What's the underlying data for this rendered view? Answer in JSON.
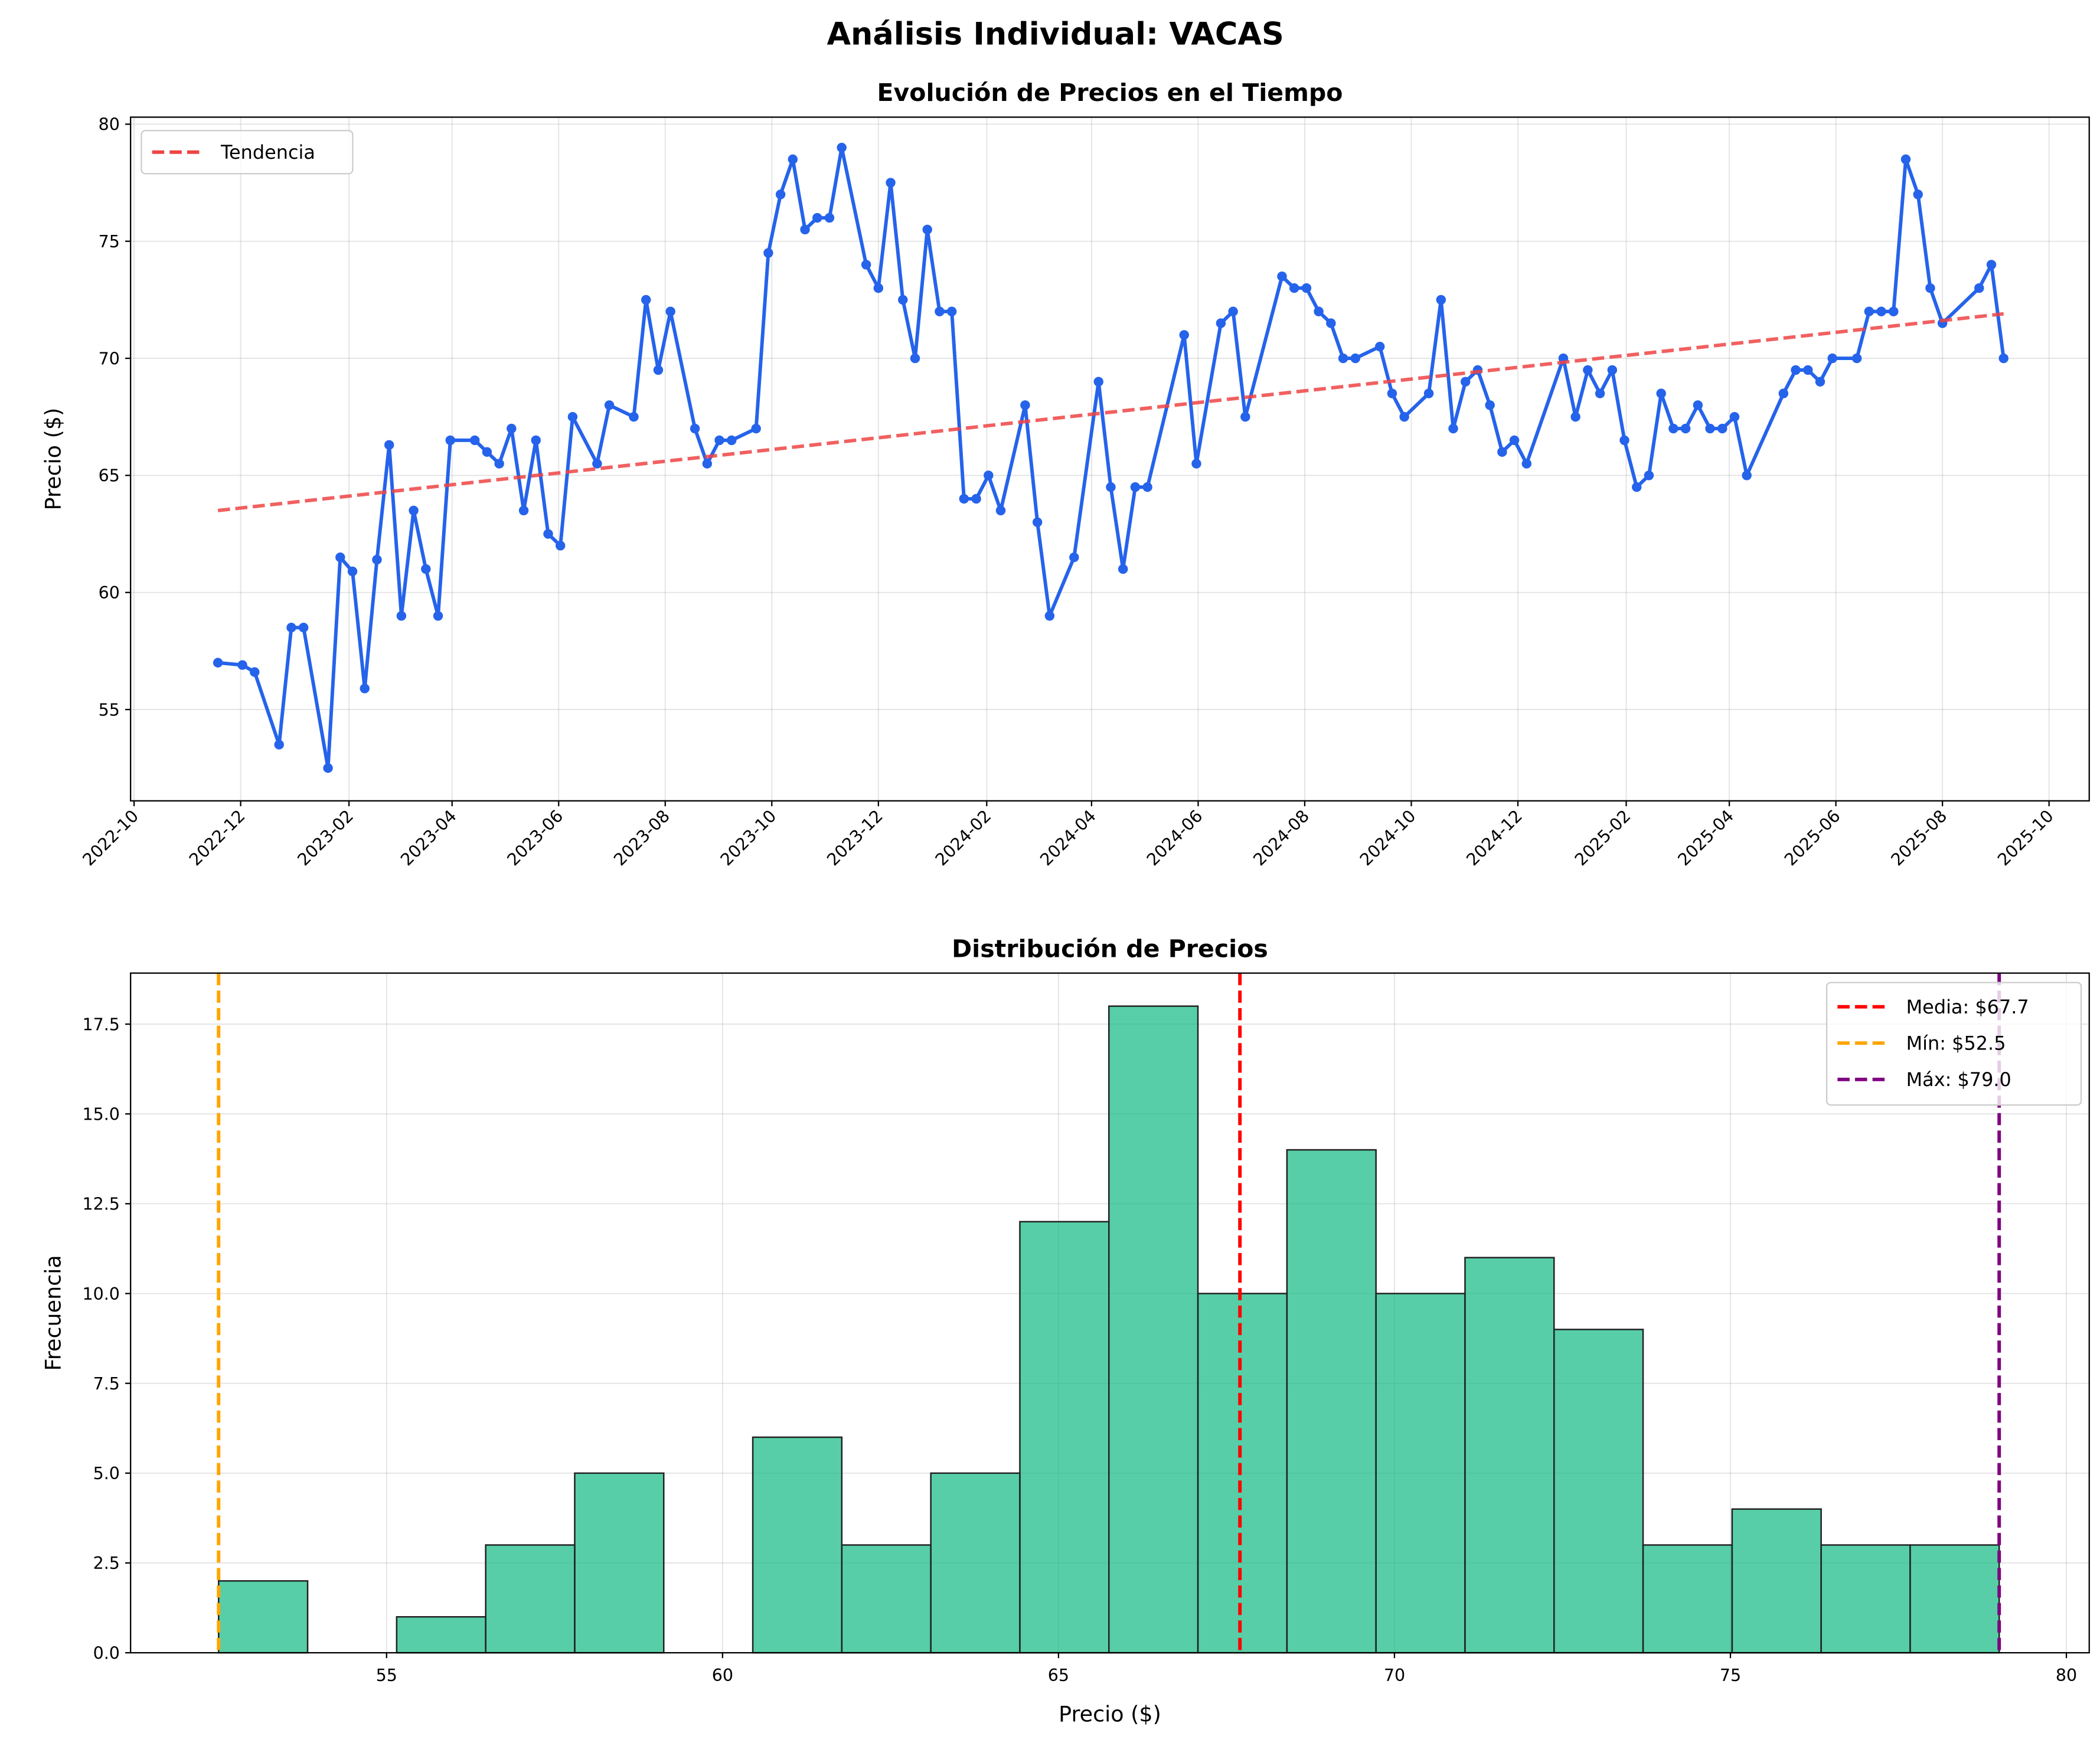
{
  "title": "Análisis Individual: VACAS",
  "chart_data": [
    {
      "type": "line",
      "title": "Evolución de Precios en el Tiempo",
      "y_label": "Precio ($)",
      "xlim": [
        "2022-09-29",
        "2025-10-24"
      ],
      "ylim": [
        51.1,
        80.3
      ],
      "xticks": [
        "2022-10",
        "2022-12",
        "2023-02",
        "2023-04",
        "2023-06",
        "2023-08",
        "2023-10",
        "2023-12",
        "2024-02",
        "2024-04",
        "2024-06",
        "2024-08",
        "2024-10",
        "2024-12",
        "2025-02",
        "2025-04",
        "2025-06",
        "2025-08",
        "2025-10"
      ],
      "yticks": [
        55,
        60,
        65,
        70,
        75,
        80
      ],
      "grid": true,
      "legend": "upper left",
      "series": [
        {
          "color": "#2563eb",
          "marker": true,
          "x": [
            "2022-11-18",
            "2022-12-02",
            "2022-12-09",
            "2022-12-23",
            "2022-12-30",
            "2023-01-06",
            "2023-01-20",
            "2023-01-27",
            "2023-02-03",
            "2023-02-10",
            "2023-02-17",
            "2023-02-24",
            "2023-03-03",
            "2023-03-10",
            "2023-03-17",
            "2023-03-24",
            "2023-03-31",
            "2023-04-14",
            "2023-04-21",
            "2023-04-28",
            "2023-05-05",
            "2023-05-12",
            "2023-05-19",
            "2023-05-26",
            "2023-06-02",
            "2023-06-09",
            "2023-06-23",
            "2023-06-30",
            "2023-07-14",
            "2023-07-21",
            "2023-07-28",
            "2023-08-04",
            "2023-08-18",
            "2023-08-25",
            "2023-09-01",
            "2023-09-08",
            "2023-09-22",
            "2023-09-29",
            "2023-10-06",
            "2023-10-13",
            "2023-10-20",
            "2023-10-27",
            "2023-11-03",
            "2023-11-10",
            "2023-11-24",
            "2023-12-01",
            "2023-12-08",
            "2023-12-15",
            "2023-12-22",
            "2023-12-29",
            "2024-01-05",
            "2024-01-12",
            "2024-01-19",
            "2024-01-26",
            "2024-02-02",
            "2024-02-09",
            "2024-02-23",
            "2024-03-01",
            "2024-03-08",
            "2024-03-22",
            "2024-04-05",
            "2024-04-12",
            "2024-04-19",
            "2024-04-26",
            "2024-05-03",
            "2024-05-24",
            "2024-05-31",
            "2024-06-14",
            "2024-06-21",
            "2024-06-28",
            "2024-07-19",
            "2024-07-26",
            "2024-08-02",
            "2024-08-09",
            "2024-08-16",
            "2024-08-23",
            "2024-08-30",
            "2024-09-13",
            "2024-09-20",
            "2024-09-27",
            "2024-10-11",
            "2024-10-18",
            "2024-10-25",
            "2024-11-01",
            "2024-11-08",
            "2024-11-15",
            "2024-11-22",
            "2024-11-29",
            "2024-12-06",
            "2024-12-27",
            "2025-01-03",
            "2025-01-10",
            "2025-01-17",
            "2025-01-24",
            "2025-01-31",
            "2025-02-07",
            "2025-02-14",
            "2025-02-21",
            "2025-02-28",
            "2025-03-07",
            "2025-03-14",
            "2025-03-21",
            "2025-03-28",
            "2025-04-04",
            "2025-04-11",
            "2025-05-02",
            "2025-05-09",
            "2025-05-16",
            "2025-05-23",
            "2025-05-30",
            "2025-06-13",
            "2025-06-20",
            "2025-06-27",
            "2025-07-04",
            "2025-07-11",
            "2025-07-18",
            "2025-07-25",
            "2025-08-01",
            "2025-08-22",
            "2025-08-29",
            "2025-09-05"
          ],
          "values": [
            57.0,
            56.9,
            56.6,
            53.5,
            58.5,
            58.5,
            52.5,
            61.5,
            60.9,
            55.9,
            61.4,
            66.3,
            59.0,
            63.5,
            61.0,
            59.0,
            66.5,
            66.5,
            66.0,
            65.5,
            67.0,
            63.5,
            66.5,
            62.5,
            62.0,
            67.5,
            65.5,
            68.0,
            67.5,
            72.5,
            69.5,
            72.0,
            67.0,
            65.5,
            66.5,
            66.5,
            67.0,
            74.5,
            77.0,
            78.5,
            75.5,
            76.0,
            76.0,
            79.0,
            74.0,
            73.0,
            77.5,
            72.5,
            70.0,
            75.5,
            72.0,
            72.0,
            64.0,
            64.0,
            65.0,
            63.5,
            68.0,
            63.0,
            59.0,
            61.5,
            69.0,
            64.5,
            61.0,
            64.5,
            64.5,
            71.0,
            65.5,
            71.5,
            72.0,
            67.5,
            73.5,
            73.0,
            73.0,
            72.0,
            71.5,
            70.0,
            70.0,
            70.5,
            68.5,
            67.5,
            68.5,
            72.5,
            67.0,
            69.0,
            69.5,
            68.0,
            66.0,
            66.5,
            65.5,
            70.0,
            67.5,
            69.5,
            68.5,
            69.5,
            66.5,
            64.5,
            65.0,
            68.5,
            67.0,
            67.0,
            68.0,
            67.0,
            67.0,
            67.5,
            65.0,
            68.5,
            69.5,
            69.5,
            69.0,
            70.0,
            70.0,
            72.0,
            72.0,
            72.0,
            78.5,
            77.0,
            73.0,
            71.5,
            73.0,
            74.0,
            70.0
          ]
        },
        {
          "name": "Tendencia",
          "color": "#ef4444",
          "linestyle": "dashed",
          "x": [
            "2022-11-18",
            "2025-09-05"
          ],
          "values": [
            63.5,
            71.9
          ]
        }
      ]
    },
    {
      "type": "histogram",
      "title": "Distribución de Precios",
      "x_label": "Precio ($)",
      "y_label": "Frecuencia",
      "xlim": [
        51.19,
        80.34
      ],
      "ylim": [
        0,
        18.92
      ],
      "xticks": [
        55,
        60,
        65,
        70,
        75,
        80
      ],
      "yticks": [
        {
          "value": 0,
          "label": "0.0"
        },
        2.5,
        {
          "value": 5,
          "label": "5.0"
        },
        7.5,
        {
          "value": 10,
          "label": "10.0"
        },
        12.5,
        {
          "value": 15,
          "label": "15.0"
        },
        17.5
      ],
      "grid": true,
      "legend": "upper right",
      "color": "#10b981",
      "alpha": 0.7,
      "bins": [
        52.5,
        53.825,
        55.15,
        56.475,
        57.8,
        59.125,
        60.45,
        61.775,
        63.1,
        64.425,
        65.75,
        67.075,
        68.4,
        69.725,
        71.05,
        72.375,
        73.7,
        75.025,
        76.35,
        77.675,
        79.0
      ],
      "values": [
        2,
        0,
        1,
        3,
        5,
        0,
        6,
        3,
        5,
        12,
        18,
        10,
        14,
        10,
        11,
        9,
        3,
        4,
        3,
        3
      ],
      "vlines": [
        {
          "name": "Media: $67.7",
          "value": 67.7,
          "color": "#ff0000"
        },
        {
          "name": "Mín: $52.5",
          "value": 52.5,
          "color": "#ffa500"
        },
        {
          "name": "Máx: $79.0",
          "value": 79.0,
          "color": "#800080"
        }
      ]
    }
  ]
}
